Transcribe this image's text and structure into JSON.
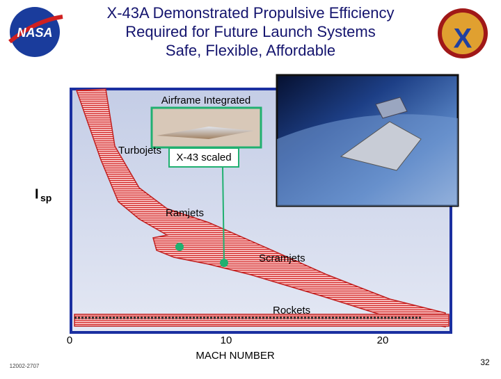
{
  "header": {
    "title": [
      "X-43A Demonstrated Propulsive Efficiency",
      "Required for Future Launch Systems",
      "Safe, Flexible, Affordable"
    ]
  },
  "diagram": {
    "y_label": {
      "main": "I",
      "sub": "sp"
    },
    "x_label": "MACH NUMBER",
    "x_ticks": [
      0,
      10,
      20
    ],
    "regions": [
      "Turbojets",
      "Ramjets",
      "Scramjets",
      "Rockets"
    ],
    "callouts": [
      "Airframe Integrated",
      "X-43 scaled"
    ]
  },
  "footer": {
    "code": "12002-2707",
    "page": "32"
  }
}
